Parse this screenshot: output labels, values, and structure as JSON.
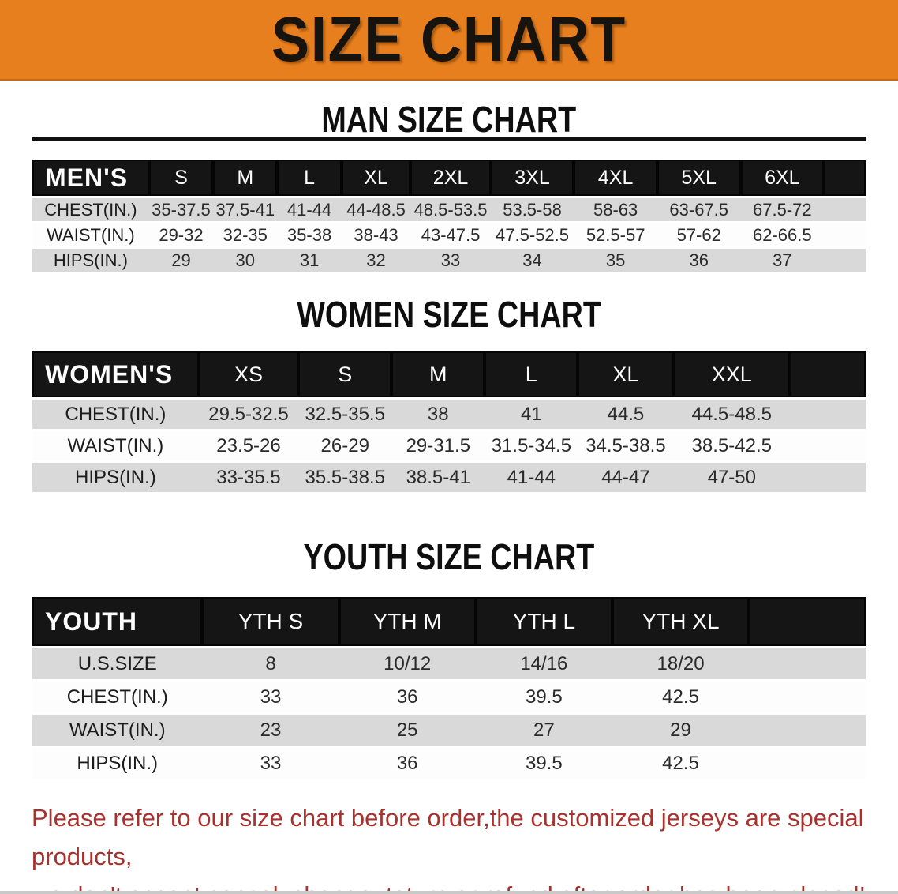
{
  "banner": {
    "title": "SIZE CHART"
  },
  "colors": {
    "banner_bg": "#E87F1E",
    "table_header_bg": "#151515",
    "row_alt_bg": "#D9D9D9",
    "notice_red": "#A9312D"
  },
  "sections": [
    {
      "heading": "MAN SIZE CHART",
      "corner_label": "MEN'S",
      "sizes": [
        "S",
        "M",
        "L",
        "XL",
        "2XL",
        "3XL",
        "4XL",
        "5XL",
        "6XL"
      ],
      "rows": [
        {
          "label": "CHEST(IN.)",
          "values": [
            "35-37.5",
            "37.5-41",
            "41-44",
            "44-48.5",
            "48.5-53.5",
            "53.5-58",
            "58-63",
            "63-67.5",
            "67.5-72"
          ]
        },
        {
          "label": "WAIST(IN.)",
          "values": [
            "29-32",
            "32-35",
            "35-38",
            "38-43",
            "43-47.5",
            "47.5-52.5",
            "52.5-57",
            "57-62",
            "62-66.5"
          ]
        },
        {
          "label": "HIPS(IN.)",
          "values": [
            "29",
            "30",
            "31",
            "32",
            "33",
            "34",
            "35",
            "36",
            "37"
          ]
        }
      ]
    },
    {
      "heading": "WOMEN SIZE CHART",
      "corner_label": "WOMEN'S",
      "sizes": [
        "XS",
        "S",
        "M",
        "L",
        "XL",
        "XXL"
      ],
      "rows": [
        {
          "label": "CHEST(IN.)",
          "values": [
            "29.5-32.5",
            "32.5-35.5",
            "38",
            "41",
            "44.5",
            "44.5-48.5"
          ]
        },
        {
          "label": "WAIST(IN.)",
          "values": [
            "23.5-26",
            "26-29",
            "29-31.5",
            "31.5-34.5",
            "34.5-38.5",
            "38.5-42.5"
          ]
        },
        {
          "label": "HIPS(IN.)",
          "values": [
            "33-35.5",
            "35.5-38.5",
            "38.5-41",
            "41-44",
            "44-47",
            "47-50"
          ]
        }
      ]
    },
    {
      "heading": "YOUTH SIZE CHART",
      "corner_label": "YOUTH",
      "sizes": [
        "YTH S",
        "YTH M",
        "YTH L",
        "YTH XL"
      ],
      "rows": [
        {
          "label": "U.S.SIZE",
          "values": [
            "8",
            "10/12",
            "14/16",
            "18/20"
          ]
        },
        {
          "label": "CHEST(IN.)",
          "values": [
            "33",
            "36",
            "39.5",
            "42.5"
          ]
        },
        {
          "label": "WAIST(IN.)",
          "values": [
            "23",
            "25",
            "27",
            "29"
          ]
        },
        {
          "label": "HIPS(IN.)",
          "values": [
            "33",
            "36",
            "39.5",
            "42.5"
          ]
        }
      ]
    }
  ],
  "footer": {
    "lines": [
      "Please refer to our size chart before order,the customized jerseys are special products,",
      "we don't accept cancel, change, teturn or refund after order has been placed!"
    ]
  }
}
